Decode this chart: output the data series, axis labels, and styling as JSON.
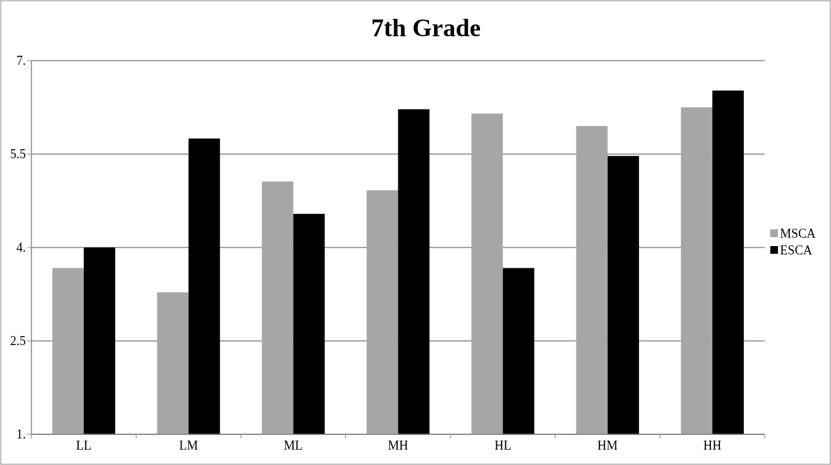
{
  "chart_data": {
    "type": "bar",
    "title": "7th Grade",
    "categories": [
      "LL",
      "LM",
      "ML",
      "MH",
      "HL",
      "HM",
      "HH"
    ],
    "series": [
      {
        "name": "MSCA",
        "color": "#a6a6a6",
        "values": [
          3.67,
          3.28,
          5.06,
          4.92,
          6.15,
          5.95,
          6.25
        ]
      },
      {
        "name": "ESCA",
        "color": "#000000",
        "values": [
          4.0,
          5.75,
          4.54,
          6.22,
          3.67,
          5.47,
          6.52
        ]
      }
    ],
    "ylim": [
      1,
      7
    ],
    "yticks": [
      {
        "value": 1,
        "label": "1."
      },
      2.5,
      {
        "value": 4,
        "label": "4."
      },
      5.5,
      {
        "value": 7,
        "label": "7."
      }
    ],
    "grid": "y",
    "legend": "right"
  }
}
